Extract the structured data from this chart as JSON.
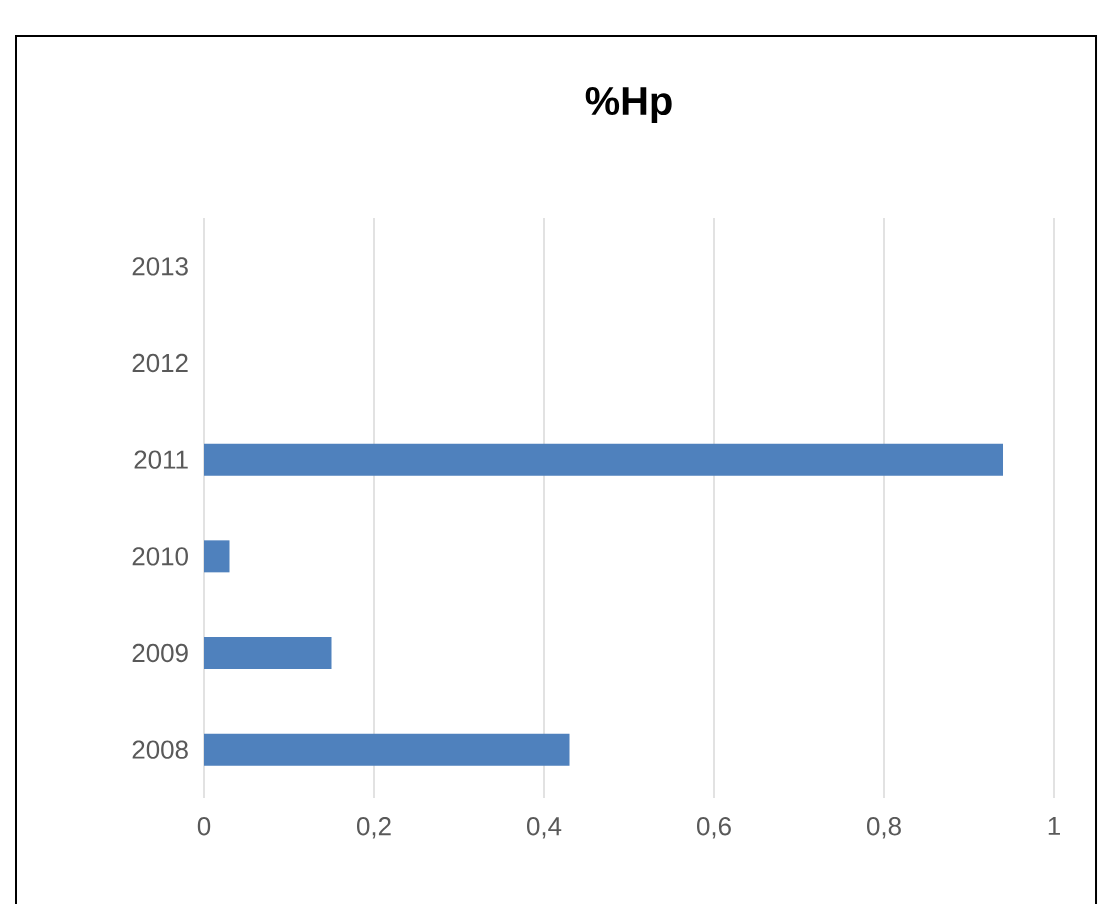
{
  "chart_data": {
    "type": "bar",
    "orientation": "horizontal",
    "title": "%Hp",
    "categories": [
      "2013",
      "2012",
      "2011",
      "2010",
      "2009",
      "2008"
    ],
    "values": [
      null,
      null,
      0.94,
      0.03,
      0.15,
      0.43
    ],
    "color": "#4f81bd",
    "xlim": [
      0,
      1
    ],
    "xticks": [
      0,
      {
        "value": 0.2,
        "label": "0,2"
      },
      {
        "value": 0.4,
        "label": "0,4"
      },
      {
        "value": 0.6,
        "label": "0,6"
      },
      {
        "value": 0.8,
        "label": "0,8"
      },
      1
    ],
    "grid": "x"
  }
}
